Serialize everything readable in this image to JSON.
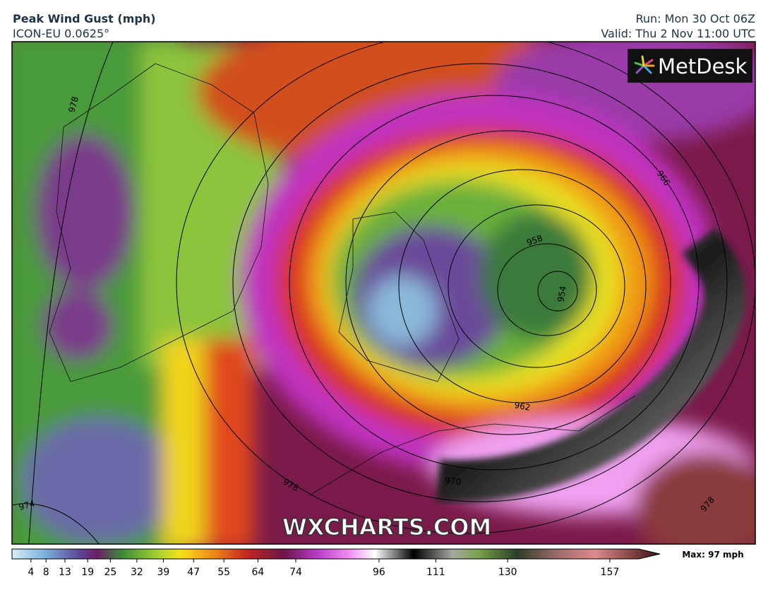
{
  "header": {
    "title": "Peak Wind Gust (mph)",
    "subtitle": "ICON-EU 0.0625°",
    "run": "Run: Mon 30 Oct 06Z",
    "valid": "Valid: Thu 2 Nov 11:00 UTC"
  },
  "logo": "MetDesk",
  "watermark": "WXCHARTS.COM",
  "isobar_labels": [
    "978",
    "966",
    "958",
    "954",
    "962",
    "970",
    "974",
    "978",
    "978"
  ],
  "colorbar": {
    "range": [
      -1,
      160
    ],
    "ticks": [
      4,
      8,
      13,
      19,
      25,
      32,
      39,
      47,
      55,
      64,
      74,
      96,
      111,
      130,
      157
    ]
  },
  "max_label": "Max: 97 mph"
}
